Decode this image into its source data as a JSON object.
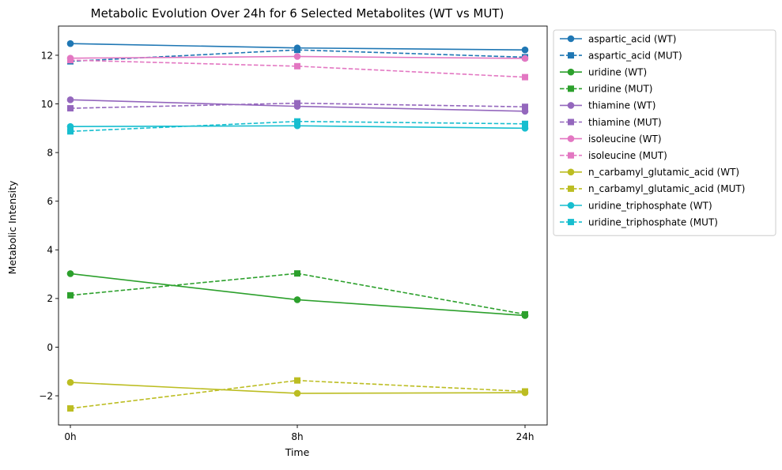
{
  "chart_data": {
    "type": "line",
    "title": "Metabolic Evolution Over 24h for 6 Selected Metabolites (WT vs MUT)",
    "xlabel": "Time",
    "ylabel": "Metabolic Intensity",
    "categories": [
      "0h",
      "8h",
      "24h"
    ],
    "ylim": [
      -3.2,
      13.2
    ],
    "yticks": [
      -2,
      0,
      2,
      4,
      6,
      8,
      10,
      12
    ],
    "grid": false,
    "legend_position": "outside-right",
    "series": [
      {
        "name": "aspartic_acid (WT)",
        "values": [
          12.48,
          12.3,
          12.22
        ],
        "color": "#1f77b4",
        "style": "solid",
        "marker": "circle"
      },
      {
        "name": "aspartic_acid (MUT)",
        "values": [
          11.75,
          12.22,
          11.92
        ],
        "color": "#1f77b4",
        "style": "dashed",
        "marker": "square"
      },
      {
        "name": "uridine (WT)",
        "values": [
          3.02,
          1.95,
          1.3
        ],
        "color": "#2ca02c",
        "style": "solid",
        "marker": "circle"
      },
      {
        "name": "uridine (MUT)",
        "values": [
          2.13,
          3.03,
          1.35
        ],
        "color": "#2ca02c",
        "style": "dashed",
        "marker": "square"
      },
      {
        "name": "thiamine (WT)",
        "values": [
          10.17,
          9.9,
          9.7
        ],
        "color": "#9467bd",
        "style": "solid",
        "marker": "circle"
      },
      {
        "name": "thiamine (MUT)",
        "values": [
          9.82,
          10.03,
          9.88
        ],
        "color": "#9467bd",
        "style": "dashed",
        "marker": "square"
      },
      {
        "name": "isoleucine (WT)",
        "values": [
          11.88,
          11.95,
          11.87
        ],
        "color": "#e377c2",
        "style": "solid",
        "marker": "circle"
      },
      {
        "name": "isoleucine (MUT)",
        "values": [
          11.8,
          11.55,
          11.1
        ],
        "color": "#e377c2",
        "style": "dashed",
        "marker": "square"
      },
      {
        "name": "n_carbamyl_glutamic_acid (WT)",
        "values": [
          -1.45,
          -1.9,
          -1.87
        ],
        "color": "#bcbd22",
        "style": "solid",
        "marker": "circle"
      },
      {
        "name": "n_carbamyl_glutamic_acid (MUT)",
        "values": [
          -2.52,
          -1.37,
          -1.82
        ],
        "color": "#bcbd22",
        "style": "dashed",
        "marker": "square"
      },
      {
        "name": "uridine_triphosphate (WT)",
        "values": [
          9.07,
          9.1,
          9.0
        ],
        "color": "#17becf",
        "style": "solid",
        "marker": "circle"
      },
      {
        "name": "uridine_triphosphate (MUT)",
        "values": [
          8.87,
          9.28,
          9.18
        ],
        "color": "#17becf",
        "style": "dashed",
        "marker": "square"
      }
    ]
  }
}
